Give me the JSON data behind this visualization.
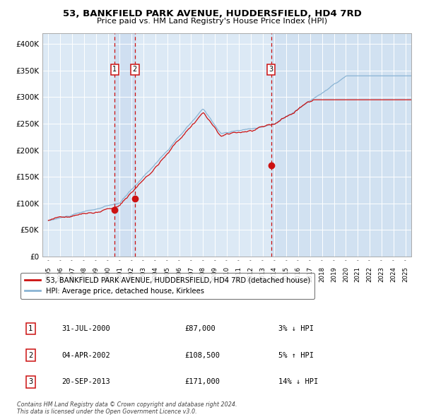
{
  "title": "53, BANKFIELD PARK AVENUE, HUDDERSFIELD, HD4 7RD",
  "subtitle": "Price paid vs. HM Land Registry's House Price Index (HPI)",
  "background_color": "#ffffff",
  "plot_bg_color": "#dce9f5",
  "hpi_color": "#8ab4d4",
  "price_color": "#cc1111",
  "sale_marker_color": "#cc1111",
  "dashed_line_color": "#cc1111",
  "sales": [
    {
      "label": "1",
      "date_x": 2000.58,
      "price": 87000
    },
    {
      "label": "2",
      "date_x": 2002.26,
      "price": 108500
    },
    {
      "label": "3",
      "date_x": 2013.72,
      "price": 171000
    }
  ],
  "ylim": [
    0,
    420000
  ],
  "yticks": [
    0,
    50000,
    100000,
    150000,
    200000,
    250000,
    300000,
    350000,
    400000
  ],
  "xlim": [
    1994.5,
    2025.5
  ],
  "xticks": [
    1995,
    1996,
    1997,
    1998,
    1999,
    2000,
    2001,
    2002,
    2003,
    2004,
    2005,
    2006,
    2007,
    2008,
    2009,
    2010,
    2011,
    2012,
    2013,
    2014,
    2015,
    2016,
    2017,
    2018,
    2019,
    2020,
    2021,
    2022,
    2023,
    2024,
    2025
  ],
  "legend_entries": [
    {
      "label": "53, BANKFIELD PARK AVENUE, HUDDERSFIELD, HD4 7RD (detached house)",
      "color": "#cc1111"
    },
    {
      "label": "HPI: Average price, detached house, Kirklees",
      "color": "#8ab4d4"
    }
  ],
  "table_rows": [
    {
      "num": "1",
      "date": "31-JUL-2000",
      "price": "£87,000",
      "hpi": "3% ↓ HPI"
    },
    {
      "num": "2",
      "date": "04-APR-2002",
      "price": "£108,500",
      "hpi": "5% ↑ HPI"
    },
    {
      "num": "3",
      "date": "20-SEP-2013",
      "price": "£171,000",
      "hpi": "14% ↓ HPI"
    }
  ],
  "footnote": "Contains HM Land Registry data © Crown copyright and database right 2024.\nThis data is licensed under the Open Government Licence v3.0."
}
